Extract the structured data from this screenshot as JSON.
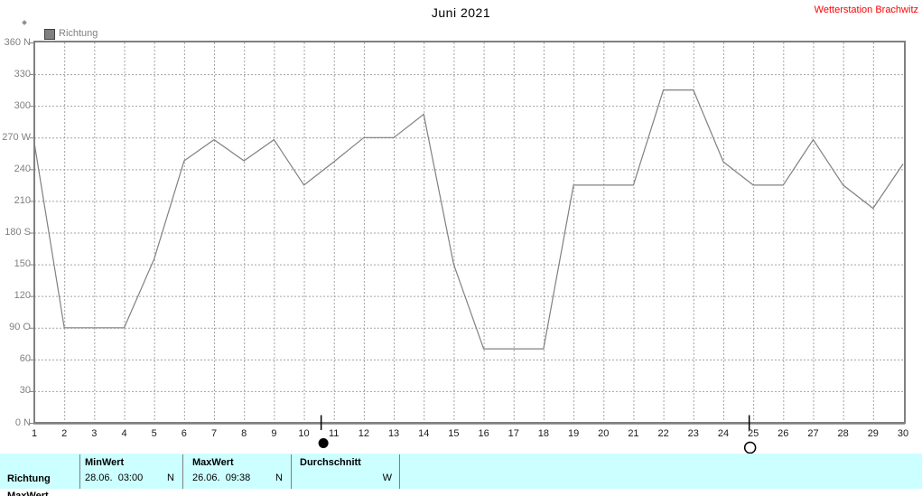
{
  "header": {
    "title": "Juni 2021",
    "station": "Wetterstation Brachwitz"
  },
  "legend": {
    "label": "Richtung"
  },
  "colors": {
    "station_text": "#FF0000",
    "line": "#808080",
    "grid": "#A3A3A3",
    "axis": "#808080",
    "y_label": "#808080",
    "x_label": "#1a1a1a",
    "table_bg": "#CCFFFF",
    "legend_swatch": "#808080",
    "moon_marker": "#000000"
  },
  "chart_data": {
    "type": "line",
    "title": "Juni 2021",
    "xlabel": "",
    "ylabel": "",
    "xlim": [
      1,
      30
    ],
    "ylim": [
      0,
      360
    ],
    "grid": "dashed-both",
    "legend_position": "top-left",
    "x_ticks": [
      1,
      2,
      3,
      4,
      5,
      6,
      7,
      8,
      9,
      10,
      11,
      12,
      13,
      14,
      15,
      16,
      17,
      18,
      19,
      20,
      21,
      22,
      23,
      24,
      25,
      26,
      27,
      28,
      29,
      30
    ],
    "y_ticks": [
      {
        "value": 360,
        "label": "360 N"
      },
      {
        "value": 330,
        "label": "330"
      },
      {
        "value": 300,
        "label": "300"
      },
      {
        "value": 270,
        "label": "270 W"
      },
      {
        "value": 240,
        "label": "240"
      },
      {
        "value": 210,
        "label": "210"
      },
      {
        "value": 180,
        "label": "180 S"
      },
      {
        "value": 150,
        "label": "150"
      },
      {
        "value": 120,
        "label": "120"
      },
      {
        "value": 90,
        "label": "90 O"
      },
      {
        "value": 60,
        "label": "60"
      },
      {
        "value": 30,
        "label": "30"
      },
      {
        "value": 0,
        "label": "0 N"
      }
    ],
    "series": [
      {
        "name": "Richtung",
        "x": [
          1,
          2,
          3,
          4,
          5,
          6,
          7,
          8,
          9,
          10,
          11,
          12,
          13,
          14,
          15,
          16,
          17,
          18,
          19,
          20,
          21,
          22,
          23,
          24,
          25,
          26,
          27,
          28,
          29,
          30
        ],
        "values": [
          265,
          90,
          90,
          90,
          155,
          248,
          268,
          248,
          268,
          225,
          247,
          270,
          270,
          292,
          150,
          70,
          70,
          70,
          225,
          225,
          225,
          315,
          315,
          247,
          225,
          225,
          268,
          225,
          203,
          245
        ]
      }
    ],
    "annotations": [
      {
        "type": "new-moon",
        "symbol": "filled-circle",
        "day": 10.56
      },
      {
        "type": "full-moon",
        "symbol": "open-circle",
        "day": 24.85
      }
    ]
  },
  "table": {
    "rows": [
      {
        "label": "Richtung",
        "cells": [
          {
            "header": "MinWert",
            "value": "28.06.  03:00",
            "unit": "N"
          },
          {
            "header": "MaxWert",
            "value": "26.06.  09:38",
            "unit": "N"
          },
          {
            "header": "Durchschnitt",
            "value": "",
            "unit": "W"
          }
        ]
      },
      {
        "label": "MaxWert",
        "cells": []
      }
    ]
  }
}
